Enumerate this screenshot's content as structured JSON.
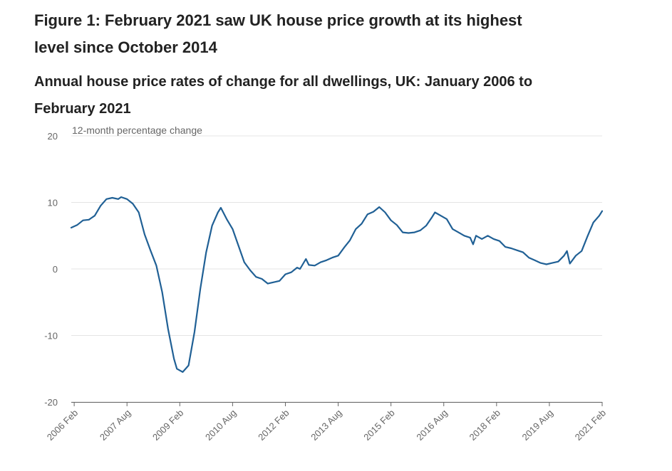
{
  "figure": {
    "title": "Figure 1: February 2021 saw UK house price growth at its highest level since October 2014",
    "subtitle": "Annual house price rates of change for all dwellings, UK: January 2006 to February 2021"
  },
  "colors": {
    "line": "#206095",
    "grid": "#e4e4e4",
    "axis": "#666666",
    "text": "#222222"
  },
  "chart_data": {
    "type": "line",
    "title": "Figure 1: February 2021 saw UK house price growth at its highest level since October 2014",
    "subtitle": "Annual house price rates of change for all dwellings, UK: January 2006 to February 2021",
    "ylabel": "12-month percentage change",
    "xlabel": "",
    "ylim": [
      -20,
      20
    ],
    "yticks": [
      20,
      10,
      0,
      -10,
      -20
    ],
    "xlim": [
      "2006-01",
      "2021-02"
    ],
    "xticks": [
      {
        "date": "2006-02",
        "label": "2006 Feb"
      },
      {
        "date": "2007-08",
        "label": "2007 Aug"
      },
      {
        "date": "2009-02",
        "label": "2009 Feb"
      },
      {
        "date": "2010-08",
        "label": "2010 Aug"
      },
      {
        "date": "2012-02",
        "label": "2012 Feb"
      },
      {
        "date": "2013-08",
        "label": "2013 Aug"
      },
      {
        "date": "2015-02",
        "label": "2015 Feb"
      },
      {
        "date": "2016-08",
        "label": "2016 Aug"
      },
      {
        "date": "2018-02",
        "label": "2018 Feb"
      },
      {
        "date": "2019-08",
        "label": "2019 Aug"
      },
      {
        "date": "2021-02",
        "label": "2021 Feb"
      }
    ],
    "grid": true,
    "legend": "none",
    "series": [
      {
        "points": [
          [
            "2006-01",
            6.2
          ],
          [
            "2006-03",
            6.6
          ],
          [
            "2006-05",
            7.3
          ],
          [
            "2006-07",
            7.4
          ],
          [
            "2006-09",
            8.0
          ],
          [
            "2006-11",
            9.5
          ],
          [
            "2007-01",
            10.5
          ],
          [
            "2007-03",
            10.7
          ],
          [
            "2007-05",
            10.5
          ],
          [
            "2007-06",
            10.8
          ],
          [
            "2007-08",
            10.5
          ],
          [
            "2007-10",
            9.8
          ],
          [
            "2007-12",
            8.5
          ],
          [
            "2008-02",
            5.2
          ],
          [
            "2008-04",
            2.8
          ],
          [
            "2008-06",
            0.5
          ],
          [
            "2008-08",
            -3.5
          ],
          [
            "2008-10",
            -9.0
          ],
          [
            "2008-12",
            -13.5
          ],
          [
            "2009-01",
            -15.0
          ],
          [
            "2009-03",
            -15.5
          ],
          [
            "2009-05",
            -14.5
          ],
          [
            "2009-07",
            -9.5
          ],
          [
            "2009-09",
            -3.0
          ],
          [
            "2009-11",
            2.5
          ],
          [
            "2010-01",
            6.5
          ],
          [
            "2010-03",
            8.5
          ],
          [
            "2010-04",
            9.2
          ],
          [
            "2010-06",
            7.5
          ],
          [
            "2010-08",
            6.0
          ],
          [
            "2010-10",
            3.5
          ],
          [
            "2010-12",
            1.0
          ],
          [
            "2011-02",
            -0.2
          ],
          [
            "2011-04",
            -1.2
          ],
          [
            "2011-06",
            -1.5
          ],
          [
            "2011-08",
            -2.2
          ],
          [
            "2011-10",
            -2.0
          ],
          [
            "2011-12",
            -1.8
          ],
          [
            "2012-02",
            -0.8
          ],
          [
            "2012-04",
            -0.5
          ],
          [
            "2012-06",
            0.2
          ],
          [
            "2012-07",
            0.0
          ],
          [
            "2012-09",
            1.5
          ],
          [
            "2012-10",
            0.6
          ],
          [
            "2012-12",
            0.5
          ],
          [
            "2013-02",
            1.0
          ],
          [
            "2013-04",
            1.3
          ],
          [
            "2013-06",
            1.7
          ],
          [
            "2013-08",
            2.0
          ],
          [
            "2013-10",
            3.2
          ],
          [
            "2013-12",
            4.3
          ],
          [
            "2014-02",
            6.0
          ],
          [
            "2014-04",
            6.8
          ],
          [
            "2014-06",
            8.2
          ],
          [
            "2014-08",
            8.6
          ],
          [
            "2014-10",
            9.3
          ],
          [
            "2014-12",
            8.5
          ],
          [
            "2015-02",
            7.3
          ],
          [
            "2015-04",
            6.6
          ],
          [
            "2015-06",
            5.5
          ],
          [
            "2015-08",
            5.4
          ],
          [
            "2015-10",
            5.5
          ],
          [
            "2015-12",
            5.8
          ],
          [
            "2016-02",
            6.5
          ],
          [
            "2016-04",
            7.8
          ],
          [
            "2016-05",
            8.5
          ],
          [
            "2016-07",
            8.0
          ],
          [
            "2016-09",
            7.5
          ],
          [
            "2016-11",
            6.0
          ],
          [
            "2017-01",
            5.5
          ],
          [
            "2017-03",
            5.0
          ],
          [
            "2017-05",
            4.7
          ],
          [
            "2017-06",
            3.7
          ],
          [
            "2017-07",
            5.0
          ],
          [
            "2017-09",
            4.5
          ],
          [
            "2017-11",
            5.0
          ],
          [
            "2018-01",
            4.5
          ],
          [
            "2018-03",
            4.2
          ],
          [
            "2018-05",
            3.3
          ],
          [
            "2018-07",
            3.1
          ],
          [
            "2018-09",
            2.8
          ],
          [
            "2018-11",
            2.5
          ],
          [
            "2019-01",
            1.7
          ],
          [
            "2019-03",
            1.3
          ],
          [
            "2019-05",
            0.9
          ],
          [
            "2019-07",
            0.7
          ],
          [
            "2019-09",
            0.9
          ],
          [
            "2019-11",
            1.1
          ],
          [
            "2020-01",
            2.0
          ],
          [
            "2020-02",
            2.7
          ],
          [
            "2020-03",
            0.8
          ],
          [
            "2020-05",
            2.0
          ],
          [
            "2020-07",
            2.7
          ],
          [
            "2020-09",
            4.9
          ],
          [
            "2020-11",
            7.0
          ],
          [
            "2021-01",
            8.0
          ],
          [
            "2021-02",
            8.7
          ]
        ]
      }
    ]
  }
}
